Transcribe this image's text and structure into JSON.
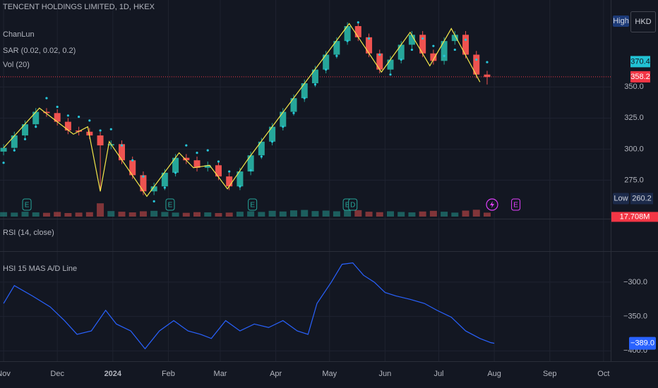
{
  "chart_data": [
    {
      "type": "candlestick",
      "title": "TENCENT HOLDINGS LIMITED, 1D, HKEX",
      "x": [
        0,
        6,
        12,
        18,
        24,
        30,
        36,
        42,
        48,
        54,
        60,
        66,
        72,
        78,
        84,
        90,
        96,
        102,
        108,
        114,
        120,
        126,
        132,
        138,
        144,
        150,
        156,
        162,
        168,
        174,
        180,
        186,
        192,
        198,
        204,
        210,
        216,
        222,
        228,
        234,
        240,
        246,
        252,
        258,
        264,
        270
      ],
      "open": [
        298,
        301,
        311,
        320,
        330,
        329,
        322,
        315,
        314,
        311,
        303,
        304,
        291,
        279,
        266,
        270,
        281,
        293,
        291,
        285,
        287,
        278,
        270,
        282,
        295,
        306,
        318,
        330,
        341,
        353,
        364,
        376,
        387,
        399,
        390,
        377,
        364,
        372,
        384,
        392,
        377,
        371,
        387,
        392,
        376,
        360
      ],
      "high": [
        304,
        314,
        323,
        333,
        333,
        332,
        325,
        318,
        317,
        314,
        307,
        307,
        294,
        282,
        273,
        284,
        296,
        296,
        294,
        290,
        290,
        281,
        285,
        298,
        309,
        321,
        333,
        344,
        356,
        367,
        379,
        390,
        402,
        402,
        393,
        380,
        375,
        387,
        395,
        395,
        380,
        390,
        395,
        395,
        379,
        363
      ],
      "low": [
        295,
        298,
        308,
        317,
        326,
        319,
        312,
        311,
        308,
        266,
        300,
        288,
        276,
        263,
        263,
        267,
        278,
        288,
        282,
        282,
        275,
        267,
        267,
        279,
        292,
        303,
        315,
        327,
        338,
        350,
        361,
        373,
        384,
        387,
        374,
        361,
        361,
        369,
        381,
        374,
        368,
        368,
        384,
        373,
        357,
        352
      ],
      "close": [
        301,
        311,
        320,
        330,
        329,
        322,
        315,
        314,
        311,
        303,
        304,
        291,
        279,
        266,
        270,
        281,
        293,
        291,
        285,
        287,
        278,
        270,
        282,
        295,
        306,
        318,
        330,
        341,
        353,
        364,
        376,
        387,
        399,
        390,
        377,
        364,
        372,
        384,
        392,
        377,
        371,
        387,
        392,
        376,
        360,
        358
      ],
      "up_color": "#26a69a",
      "down_color": "#ef5350",
      "series": [
        {
          "name": "ChanLun",
          "color": "#f5e84a",
          "x": [
            0,
            20,
            39,
            47,
            54,
            59,
            80,
            98,
            106,
            115,
            125,
            136,
            193,
            211,
            227,
            238,
            250,
            266
          ],
          "values": [
            301,
            333,
            312,
            318,
            266,
            306,
            262,
            297,
            285,
            287,
            268,
            291,
            401,
            362,
            394,
            367,
            397,
            354
          ]
        },
        {
          "name": "SAR (0.02, 0.02, 0.2)",
          "color": "#26c6da",
          "values": [
            289,
            299,
            308,
            318,
            341,
            334,
            327,
            326,
            323,
            315,
            316,
            303,
            291,
            278,
            258,
            269,
            281,
            303,
            297,
            299,
            290,
            282,
            270,
            283,
            294,
            306,
            318,
            329,
            341,
            352,
            364,
            375,
            387,
            402,
            389,
            376,
            360,
            372,
            380,
            389,
            383,
            375,
            380,
            388,
            372,
            370
          ]
        }
      ],
      "xlim": [
        -2,
        339
      ],
      "ylim": [
        244,
        420
      ],
      "yticks": [
        {
          "value": 350,
          "label": "350.0"
        },
        {
          "value": 325,
          "label": "325.0"
        },
        {
          "value": 300,
          "label": "300.0"
        },
        {
          "value": 275,
          "label": "275.0"
        }
      ],
      "grid": true,
      "price_labels": [
        {
          "value": 370.4,
          "color": "#22c2d4"
        },
        {
          "value": 358.2,
          "color": "#f23645"
        }
      ],
      "scale_high": "High",
      "currency": "HKD",
      "scale_low": {
        "label": "Low",
        "value": 260.2
      },
      "events": [
        {
          "x": 13,
          "label": "E"
        },
        {
          "x": 93,
          "label": "E"
        },
        {
          "x": 139,
          "label": "E"
        },
        {
          "x": 192,
          "label": "E"
        },
        {
          "x": 195,
          "label": "D"
        },
        {
          "x": 286,
          "label": "E",
          "color": "#e040fb"
        }
      ]
    },
    {
      "type": "bar",
      "title": "Vol (20)",
      "values": [
        20,
        18,
        22,
        19,
        17,
        21,
        16,
        18,
        20,
        60,
        25,
        22,
        19,
        24,
        26,
        21,
        18,
        17,
        20,
        19,
        16,
        18,
        22,
        24,
        21,
        26,
        23,
        28,
        30,
        25,
        27,
        24,
        33,
        29,
        22,
        20,
        24,
        21,
        19,
        23,
        26,
        22,
        18,
        27,
        31,
        17.708
      ],
      "last_label": "17.708M",
      "ylim": [
        0,
        150
      ]
    },
    {
      "type": "line",
      "title": "RSI (14, close)"
    },
    {
      "type": "line",
      "title": "HSI 15 MAS A/D Line",
      "color": "#2962ff",
      "x": [
        0,
        6,
        16,
        26,
        34,
        41,
        49,
        57,
        63,
        71,
        79,
        87,
        95,
        103,
        110,
        116,
        124,
        132,
        140,
        148,
        156,
        164,
        170,
        175,
        183,
        189,
        195,
        201,
        207,
        213,
        219,
        227,
        235,
        242,
        250,
        258,
        266,
        272,
        274
      ],
      "values": [
        -331,
        -305,
        -320,
        -336,
        -356,
        -376,
        -371,
        -341,
        -361,
        -371,
        -397,
        -371,
        -356,
        -371,
        -376,
        -382,
        -356,
        -371,
        -361,
        -366,
        -356,
        -371,
        -376,
        -331,
        -300,
        -274,
        -272,
        -290,
        -300,
        -315,
        -320,
        -325,
        -331,
        -341,
        -351,
        -371,
        -382,
        -388,
        -389
      ],
      "last_label": "−389.0",
      "ylim": [
        -413,
        -259
      ],
      "yticks": [
        {
          "value": -300,
          "label": "−300.0"
        },
        {
          "value": -350,
          "label": "−350.0"
        },
        {
          "value": -400,
          "label": "−400.0"
        }
      ],
      "xticks": [
        {
          "value": 0,
          "label": "Nov"
        },
        {
          "value": 30,
          "label": "Dec"
        },
        {
          "value": 61,
          "label": "2024",
          "bold": true
        },
        {
          "value": 92,
          "label": "Feb"
        },
        {
          "value": 121,
          "label": "Mar"
        },
        {
          "value": 152,
          "label": "Apr"
        },
        {
          "value": 182,
          "label": "May"
        },
        {
          "value": 213,
          "label": "Jun"
        },
        {
          "value": 243,
          "label": "Jul"
        },
        {
          "value": 274,
          "label": "Aug"
        },
        {
          "value": 305,
          "label": "Sep"
        },
        {
          "value": 335,
          "label": "Oct"
        }
      ]
    }
  ]
}
